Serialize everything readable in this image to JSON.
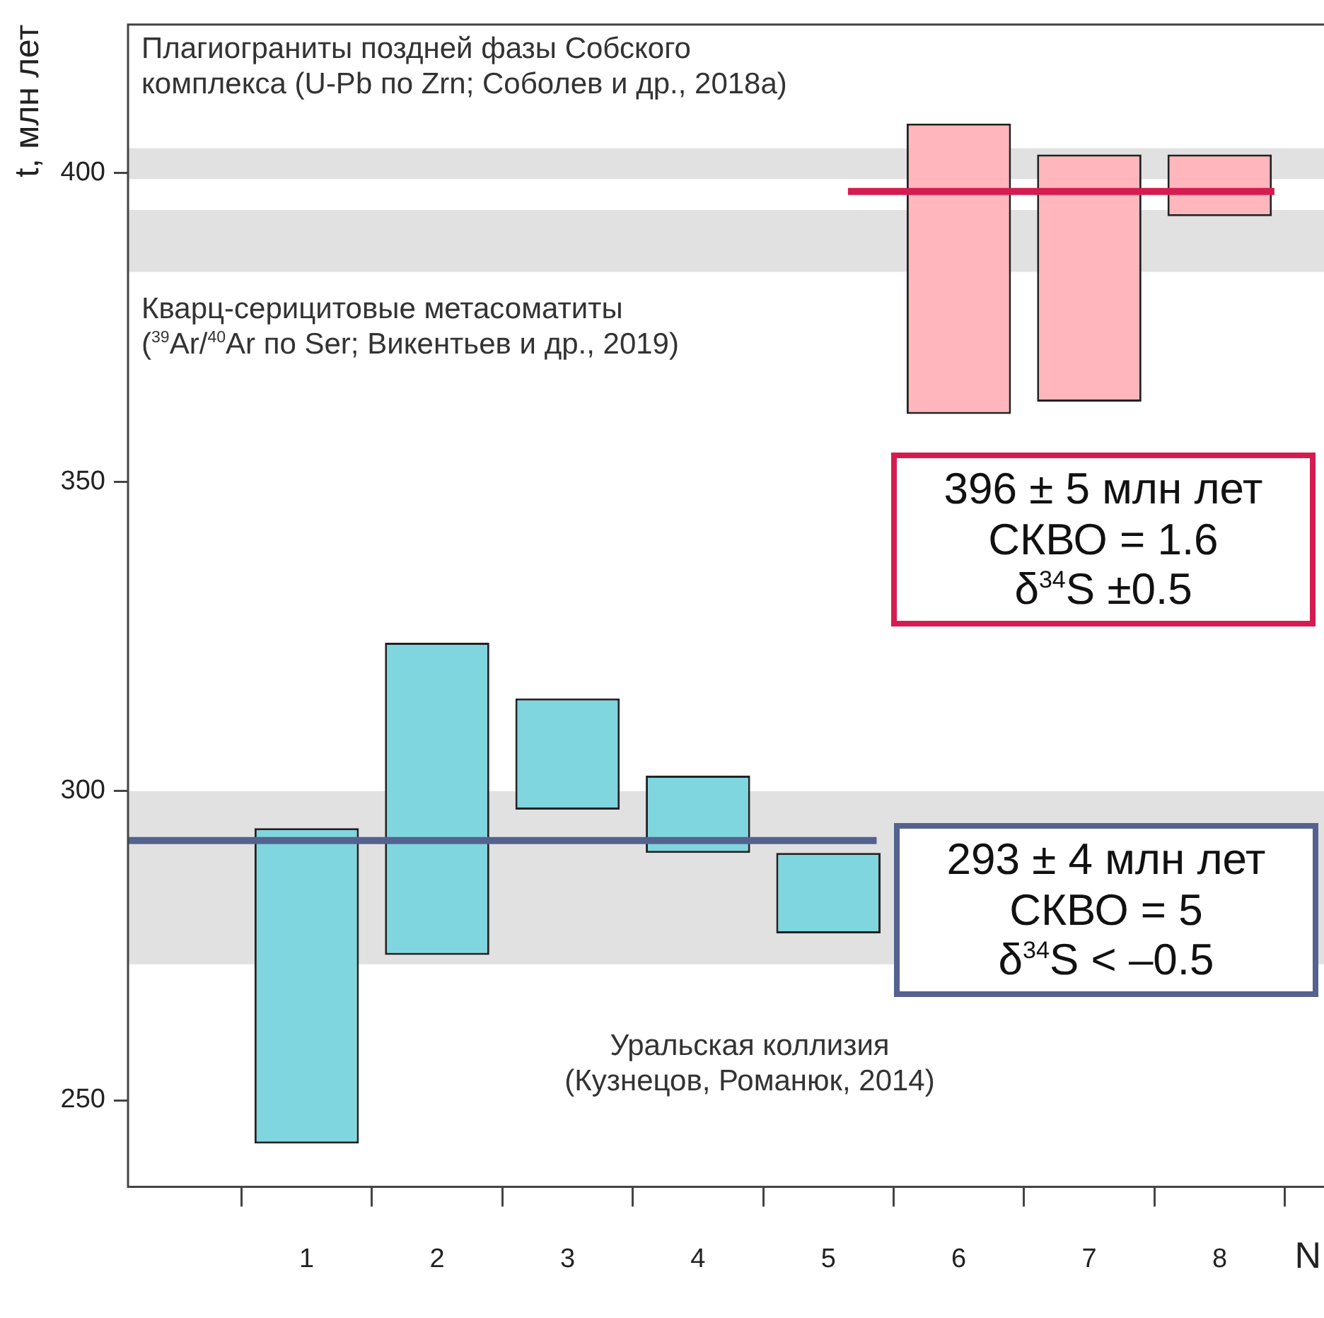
{
  "chart_data": {
    "type": "bar",
    "xlabel": "N",
    "ylabel": "t, млн лет",
    "series": [
      {
        "x": [
          1,
          2,
          3,
          4,
          5,
          6,
          7,
          8
        ],
        "values": [
          51,
          50.5,
          18,
          12.5,
          13,
          47,
          40,
          10
        ],
        "base": [
          243,
          273.5,
          297,
          290,
          277,
          361,
          363,
          393
        ],
        "colors": [
          "#80d6de",
          "#80d6de",
          "#80d6de",
          "#80d6de",
          "#80d6de",
          "#ffb6bc",
          "#ffb6bc",
          "#ffb6bc"
        ]
      },
      {
        "type": "line",
        "x": [
          5.15,
          8.42
        ],
        "values": [
          397,
          397
        ],
        "color": "#d51c50"
      },
      {
        "type": "line",
        "x": [
          -0.37,
          5.37
        ],
        "values": [
          292,
          292
        ],
        "color": "#53628f"
      }
    ],
    "xlim": [
      -0.37,
      8.8
    ],
    "xticks": [
      1,
      2,
      3,
      4,
      5,
      6,
      7,
      8
    ],
    "ylim": [
      236,
      424
    ],
    "yticks": [
      250,
      300,
      350,
      400
    ],
    "bands": [
      {
        "axis": "y",
        "from": 399,
        "to": 404,
        "color": "#e1e1e1"
      },
      {
        "axis": "y",
        "from": 384,
        "to": 394,
        "color": "#e1e1e1"
      },
      {
        "axis": "y",
        "from": 272,
        "to": 300,
        "color": "#e1e1e1"
      }
    ],
    "annotations": [
      "Плагиограниты поздней фазы Собского",
      "комплекса (U-Pb по Zrn; Соболев и др., 2018а)",
      "Кварц-серицитовые метасоматиты",
      "($^{39}$Ar/$^{40}$Ar по Ser; Викентьев и др., 2019)",
      "396 ± 5 млн лет",
      "СКВО = 1.6",
      "δ$^{34}$S ±0.5",
      "293 ± 4 млн лет",
      "СКВО = 5",
      "δ$^{34}$S < –0.5",
      "Уральская коллизия",
      "(Кузнецов, Романюк, 2014)"
    ],
    "grid": false,
    "legend": false
  }
}
